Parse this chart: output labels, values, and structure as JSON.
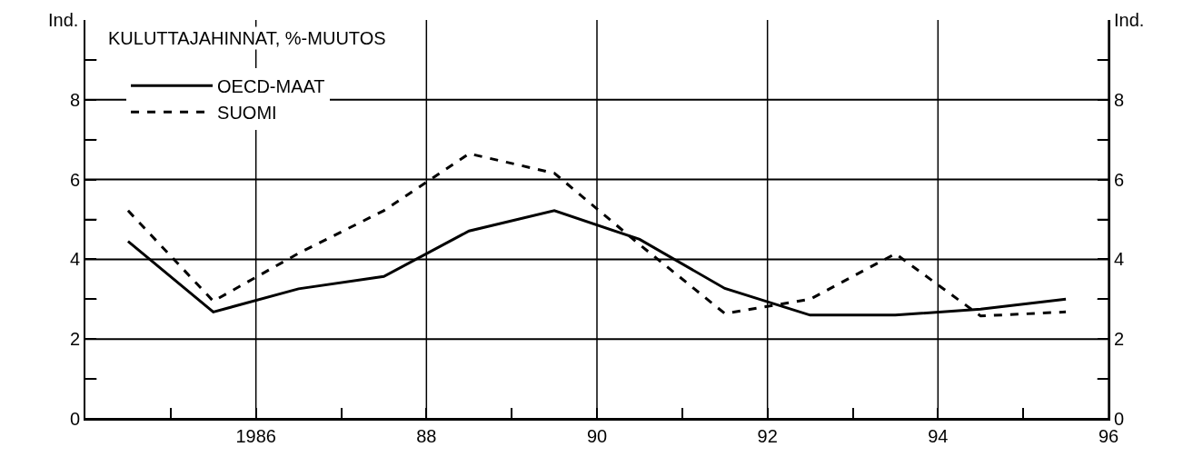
{
  "chart_data": {
    "type": "line",
    "title": "KULUTTAJAHINNAT, %-MUUTOS",
    "ylabel": "Ind.",
    "y2label": "Ind.",
    "x": [
      1984.5,
      1985.5,
      1986.5,
      1987.5,
      1988.5,
      1989.5,
      1990.5,
      1991.5,
      1992.5,
      1993.5,
      1994.5,
      1995.5
    ],
    "series": [
      {
        "name": "OECD-MAAT",
        "color": "#000000",
        "line_style": "solid",
        "values": [
          4.45,
          2.68,
          3.26,
          3.57,
          4.71,
          5.22,
          4.5,
          3.27,
          2.6,
          2.6,
          2.75,
          3.0
        ]
      },
      {
        "name": "SUOMI",
        "color": "#000000",
        "line_style": "dashed",
        "values": [
          5.22,
          2.95,
          4.15,
          5.22,
          6.65,
          6.16,
          4.37,
          2.64,
          3.0,
          4.14,
          2.58,
          2.68
        ]
      }
    ],
    "xlim": [
      1984,
      1996
    ],
    "xticks": [
      {
        "value": 1985,
        "label": null
      },
      {
        "value": 1986,
        "label": "1986"
      },
      {
        "value": 1987,
        "label": null
      },
      {
        "value": 1988,
        "label": "88"
      },
      {
        "value": 1989,
        "label": null
      },
      {
        "value": 1990,
        "label": "90"
      },
      {
        "value": 1991,
        "label": null
      },
      {
        "value": 1992,
        "label": "92"
      },
      {
        "value": 1993,
        "label": null
      },
      {
        "value": 1994,
        "label": "94"
      },
      {
        "value": 1995,
        "label": null
      },
      {
        "value": 1996,
        "label": "96"
      }
    ],
    "ylim": [
      0,
      10
    ],
    "yticks": [
      0,
      {
        "value": 1,
        "label": null
      },
      2,
      {
        "value": 3,
        "label": null
      },
      4,
      {
        "value": 5,
        "label": null
      },
      6,
      {
        "value": 7,
        "label": null
      },
      8,
      {
        "value": 9,
        "label": null
      }
    ],
    "y2lim": [
      0,
      10
    ],
    "y2ticks": [
      0,
      {
        "value": 1,
        "label": null
      },
      2,
      {
        "value": 3,
        "label": null
      },
      4,
      {
        "value": 5,
        "label": null
      },
      6,
      {
        "value": 7,
        "label": null
      },
      8,
      {
        "value": 9,
        "label": null
      }
    ],
    "grid": true,
    "legend": "top left",
    "marker": "none"
  }
}
